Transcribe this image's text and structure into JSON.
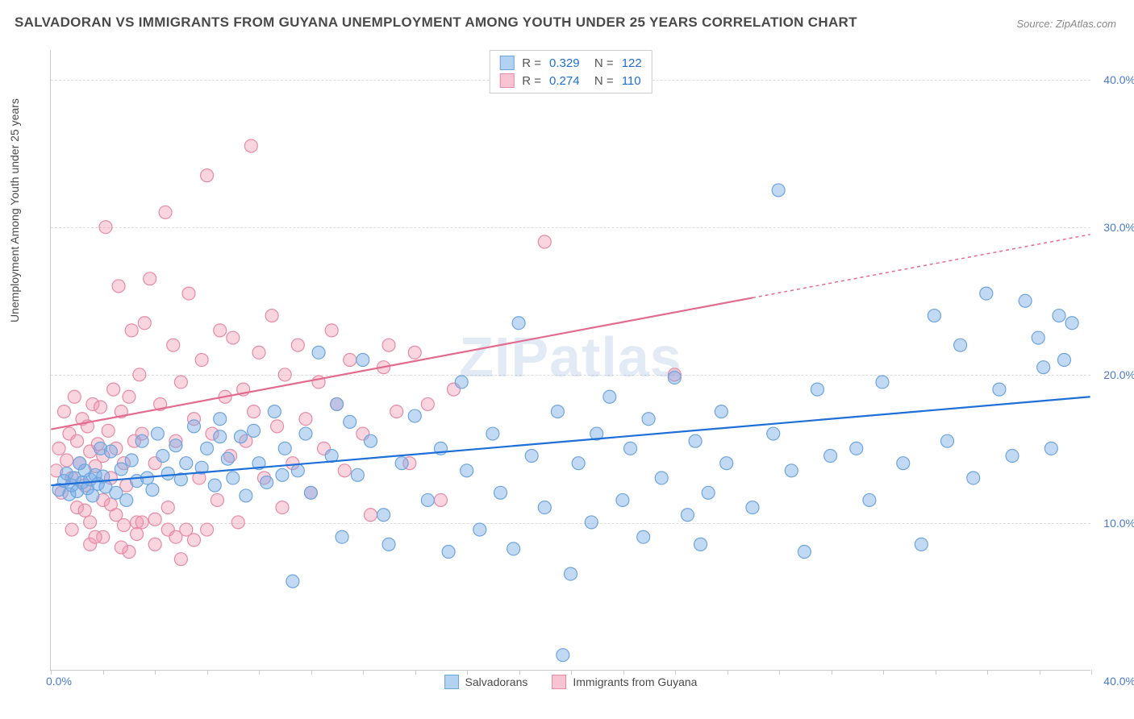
{
  "title": "SALVADORAN VS IMMIGRANTS FROM GUYANA UNEMPLOYMENT AMONG YOUTH UNDER 25 YEARS CORRELATION CHART",
  "source": "Source: ZipAtlas.com",
  "y_label": "Unemployment Among Youth under 25 years",
  "watermark": "ZIPatlas",
  "chart": {
    "type": "scatter",
    "xlim": [
      0,
      40
    ],
    "ylim": [
      0,
      42
    ],
    "y_ticks": [
      10,
      20,
      30,
      40
    ],
    "y_tick_labels": [
      "10.0%",
      "20.0%",
      "30.0%",
      "40.0%"
    ],
    "x_ticks_minor": [
      0,
      2,
      4,
      6,
      8,
      10,
      12,
      14,
      16,
      18,
      20,
      22,
      24,
      26,
      28,
      30,
      32,
      34,
      36,
      38,
      40
    ],
    "x_start_label": "0.0%",
    "x_end_label": "40.0%",
    "background_color": "#ffffff",
    "grid_color": "#dddddd",
    "axis_color": "#cccccc",
    "marker_radius": 8,
    "marker_stroke_width": 1.2,
    "trend_line_width": 2.2,
    "y_tick_color": "#4a7bd0",
    "x_tick_color": "#4a7bd0"
  },
  "series": [
    {
      "name": "Salvadorans",
      "fill_color": "rgba(120,170,230,0.45)",
      "stroke_color": "#6ea5dd",
      "swatch_fill": "#b3d1f0",
      "swatch_border": "#6ea5dd",
      "line_color": "#1e6fd9",
      "stats": {
        "R": "0.329",
        "N": "122",
        "value_color": "#1e6fd9"
      },
      "trend": {
        "x1": 0,
        "y1": 12.5,
        "x2": 40,
        "y2": 18.5,
        "dash_from_x": null
      },
      "points": [
        [
          0.3,
          12.2
        ],
        [
          0.5,
          12.8
        ],
        [
          0.6,
          13.3
        ],
        [
          0.7,
          11.9
        ],
        [
          0.8,
          12.5
        ],
        [
          0.9,
          13.0
        ],
        [
          1.0,
          12.1
        ],
        [
          1.1,
          14.0
        ],
        [
          1.2,
          12.7
        ],
        [
          1.3,
          13.5
        ],
        [
          1.4,
          12.3
        ],
        [
          1.5,
          12.9
        ],
        [
          1.6,
          11.8
        ],
        [
          1.7,
          13.2
        ],
        [
          1.8,
          12.6
        ],
        [
          1.9,
          15.0
        ],
        [
          2.0,
          13.1
        ],
        [
          2.1,
          12.4
        ],
        [
          2.3,
          14.8
        ],
        [
          2.5,
          12.0
        ],
        [
          2.7,
          13.6
        ],
        [
          2.9,
          11.5
        ],
        [
          3.1,
          14.2
        ],
        [
          3.3,
          12.8
        ],
        [
          3.5,
          15.5
        ],
        [
          3.7,
          13.0
        ],
        [
          3.9,
          12.2
        ],
        [
          4.1,
          16.0
        ],
        [
          4.3,
          14.5
        ],
        [
          4.5,
          13.3
        ],
        [
          4.8,
          15.2
        ],
        [
          5.0,
          12.9
        ],
        [
          5.2,
          14.0
        ],
        [
          5.5,
          16.5
        ],
        [
          5.8,
          13.7
        ],
        [
          6.0,
          15.0
        ],
        [
          6.3,
          12.5
        ],
        [
          6.5,
          17.0
        ],
        [
          6.8,
          14.3
        ],
        [
          7.0,
          13.0
        ],
        [
          7.3,
          15.8
        ],
        [
          7.5,
          11.8
        ],
        [
          7.8,
          16.2
        ],
        [
          8.0,
          14.0
        ],
        [
          8.3,
          12.7
        ],
        [
          8.6,
          17.5
        ],
        [
          9.0,
          15.0
        ],
        [
          9.3,
          6.0
        ],
        [
          9.5,
          13.5
        ],
        [
          9.8,
          16.0
        ],
        [
          10.0,
          12.0
        ],
        [
          10.3,
          21.5
        ],
        [
          10.8,
          14.5
        ],
        [
          11.2,
          9.0
        ],
        [
          11.5,
          16.8
        ],
        [
          11.8,
          13.2
        ],
        [
          12.0,
          21.0
        ],
        [
          12.3,
          15.5
        ],
        [
          12.8,
          10.5
        ],
        [
          13.0,
          8.5
        ],
        [
          13.5,
          14.0
        ],
        [
          14.0,
          17.2
        ],
        [
          14.5,
          11.5
        ],
        [
          15.0,
          15.0
        ],
        [
          15.3,
          8.0
        ],
        [
          15.8,
          19.5
        ],
        [
          16.0,
          13.5
        ],
        [
          16.5,
          9.5
        ],
        [
          17.0,
          16.0
        ],
        [
          17.3,
          12.0
        ],
        [
          17.8,
          8.2
        ],
        [
          18.0,
          23.5
        ],
        [
          18.5,
          14.5
        ],
        [
          19.0,
          11.0
        ],
        [
          19.5,
          17.5
        ],
        [
          20.0,
          6.5
        ],
        [
          20.3,
          14.0
        ],
        [
          20.8,
          10.0
        ],
        [
          21.0,
          16.0
        ],
        [
          21.5,
          18.5
        ],
        [
          22.0,
          11.5
        ],
        [
          22.3,
          15.0
        ],
        [
          22.8,
          9.0
        ],
        [
          23.0,
          17.0
        ],
        [
          23.5,
          13.0
        ],
        [
          24.0,
          19.8
        ],
        [
          24.5,
          10.5
        ],
        [
          24.8,
          15.5
        ],
        [
          25.0,
          8.5
        ],
        [
          25.3,
          12.0
        ],
        [
          25.8,
          17.5
        ],
        [
          26.0,
          14.0
        ],
        [
          27.0,
          11.0
        ],
        [
          27.8,
          16.0
        ],
        [
          28.0,
          32.5
        ],
        [
          28.5,
          13.5
        ],
        [
          29.0,
          8.0
        ],
        [
          29.5,
          19.0
        ],
        [
          30.0,
          14.5
        ],
        [
          31.0,
          15.0
        ],
        [
          31.5,
          11.5
        ],
        [
          32.0,
          19.5
        ],
        [
          32.8,
          14.0
        ],
        [
          33.5,
          8.5
        ],
        [
          34.0,
          24.0
        ],
        [
          34.5,
          15.5
        ],
        [
          35.0,
          22.0
        ],
        [
          35.5,
          13.0
        ],
        [
          36.0,
          25.5
        ],
        [
          36.5,
          19.0
        ],
        [
          37.0,
          14.5
        ],
        [
          37.5,
          25.0
        ],
        [
          38.0,
          22.5
        ],
        [
          38.2,
          20.5
        ],
        [
          38.5,
          15.0
        ],
        [
          38.8,
          24.0
        ],
        [
          39.0,
          21.0
        ],
        [
          39.3,
          23.5
        ],
        [
          19.7,
          1.0
        ],
        [
          6.5,
          15.8
        ],
        [
          8.9,
          13.2
        ],
        [
          11.0,
          18.0
        ]
      ]
    },
    {
      "name": "Immigrants from Guyana",
      "fill_color": "rgba(240,150,175,0.40)",
      "stroke_color": "#e88aa5",
      "swatch_fill": "#f7c4d3",
      "swatch_border": "#e88aa5",
      "line_color": "#e36b8e",
      "stats": {
        "R": "0.274",
        "N": "110",
        "value_color": "#1e6fd9"
      },
      "trend": {
        "x1": 0,
        "y1": 16.3,
        "x2": 40,
        "y2": 29.5,
        "dash_from_x": 27
      },
      "points": [
        [
          0.2,
          13.5
        ],
        [
          0.3,
          15.0
        ],
        [
          0.4,
          12.0
        ],
        [
          0.5,
          17.5
        ],
        [
          0.6,
          14.2
        ],
        [
          0.7,
          16.0
        ],
        [
          0.8,
          13.0
        ],
        [
          0.9,
          18.5
        ],
        [
          1.0,
          15.5
        ],
        [
          1.1,
          14.0
        ],
        [
          1.2,
          17.0
        ],
        [
          1.3,
          12.5
        ],
        [
          1.4,
          16.5
        ],
        [
          1.5,
          14.8
        ],
        [
          1.6,
          18.0
        ],
        [
          1.7,
          13.8
        ],
        [
          1.8,
          15.3
        ],
        [
          1.9,
          17.8
        ],
        [
          2.0,
          14.5
        ],
        [
          2.1,
          30.0
        ],
        [
          2.2,
          16.2
        ],
        [
          2.3,
          13.0
        ],
        [
          2.4,
          19.0
        ],
        [
          2.5,
          15.0
        ],
        [
          2.6,
          26.0
        ],
        [
          2.7,
          17.5
        ],
        [
          2.8,
          14.0
        ],
        [
          2.9,
          12.5
        ],
        [
          3.0,
          18.5
        ],
        [
          3.1,
          23.0
        ],
        [
          3.2,
          15.5
        ],
        [
          3.3,
          10.0
        ],
        [
          3.4,
          20.0
        ],
        [
          3.5,
          16.0
        ],
        [
          3.6,
          23.5
        ],
        [
          3.8,
          26.5
        ],
        [
          4.0,
          14.0
        ],
        [
          4.2,
          18.0
        ],
        [
          4.4,
          31.0
        ],
        [
          4.5,
          11.0
        ],
        [
          4.7,
          22.0
        ],
        [
          4.8,
          15.5
        ],
        [
          5.0,
          19.5
        ],
        [
          5.2,
          9.5
        ],
        [
          5.3,
          25.5
        ],
        [
          5.5,
          17.0
        ],
        [
          5.7,
          13.0
        ],
        [
          5.8,
          21.0
        ],
        [
          6.0,
          33.5
        ],
        [
          6.2,
          16.0
        ],
        [
          6.4,
          11.5
        ],
        [
          6.5,
          23.0
        ],
        [
          6.7,
          18.5
        ],
        [
          6.9,
          14.5
        ],
        [
          7.0,
          22.5
        ],
        [
          7.2,
          10.0
        ],
        [
          7.4,
          19.0
        ],
        [
          7.5,
          15.5
        ],
        [
          7.7,
          35.5
        ],
        [
          7.8,
          17.5
        ],
        [
          8.0,
          21.5
        ],
        [
          8.2,
          13.0
        ],
        [
          8.5,
          24.0
        ],
        [
          8.7,
          16.5
        ],
        [
          8.9,
          11.0
        ],
        [
          9.0,
          20.0
        ],
        [
          9.3,
          14.0
        ],
        [
          9.5,
          22.0
        ],
        [
          9.8,
          17.0
        ],
        [
          10.0,
          12.0
        ],
        [
          10.3,
          19.5
        ],
        [
          10.5,
          15.0
        ],
        [
          10.8,
          23.0
        ],
        [
          11.0,
          18.0
        ],
        [
          11.3,
          13.5
        ],
        [
          11.5,
          21.0
        ],
        [
          12.0,
          16.0
        ],
        [
          12.3,
          10.5
        ],
        [
          12.8,
          20.5
        ],
        [
          13.0,
          22.0
        ],
        [
          13.3,
          17.5
        ],
        [
          13.8,
          14.0
        ],
        [
          14.0,
          21.5
        ],
        [
          14.5,
          18.0
        ],
        [
          15.0,
          11.5
        ],
        [
          15.5,
          19.0
        ],
        [
          1.5,
          8.5
        ],
        [
          2.0,
          9.0
        ],
        [
          2.5,
          10.5
        ],
        [
          3.0,
          8.0
        ],
        [
          3.5,
          10.0
        ],
        [
          4.0,
          8.5
        ],
        [
          4.5,
          9.5
        ],
        [
          19.0,
          29.0
        ],
        [
          5.0,
          7.5
        ],
        [
          5.5,
          8.8
        ],
        [
          1.0,
          11.0
        ],
        [
          1.5,
          10.0
        ],
        [
          2.0,
          11.5
        ],
        [
          0.8,
          9.5
        ],
        [
          1.3,
          10.8
        ],
        [
          24.0,
          20.0
        ],
        [
          2.8,
          9.8
        ],
        [
          2.3,
          11.2
        ],
        [
          3.3,
          9.2
        ],
        [
          1.7,
          9.0
        ],
        [
          2.7,
          8.3
        ],
        [
          4.0,
          10.2
        ],
        [
          4.8,
          9.0
        ],
        [
          6.0,
          9.5
        ]
      ]
    }
  ]
}
